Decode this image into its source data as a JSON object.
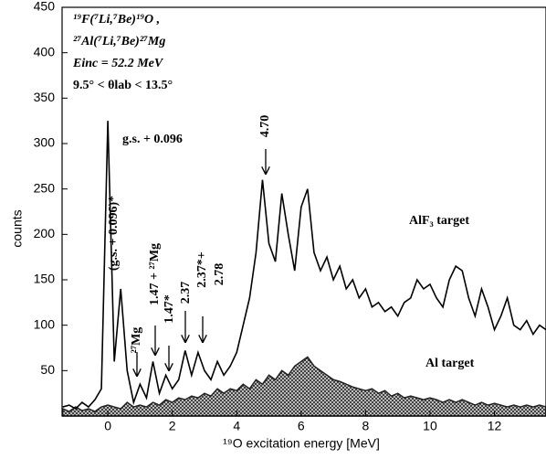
{
  "chart_data": {
    "type": "line",
    "xlabel": "¹⁹O excitation energy [MeV]",
    "ylabel": "counts",
    "inset_text": [
      "¹⁹F(⁷Li,⁷Be)¹⁹O ,",
      "²⁷Al(⁷Li,⁷Be)²⁷Mg",
      "Einc = 52.2 MeV",
      "9.5° < θlab < 13.5°"
    ],
    "annotations": [
      "g.s. + 0.096",
      "(g.s. + 0.096)*",
      "²⁷Mg",
      "1.47 + ²⁷Mg",
      "1.47*",
      "2.37",
      "2.37*+",
      "2.78",
      "4.70"
    ],
    "x": [
      -1.4,
      -1.2,
      -1.0,
      -0.8,
      -0.6,
      -0.4,
      -0.2,
      0,
      0.2,
      0.4,
      0.6,
      0.8,
      1.0,
      1.2,
      1.4,
      1.6,
      1.8,
      2.0,
      2.2,
      2.4,
      2.6,
      2.8,
      3.0,
      3.2,
      3.4,
      3.6,
      3.8,
      4.0,
      4.2,
      4.4,
      4.6,
      4.8,
      5.0,
      5.2,
      5.4,
      5.6,
      5.8,
      6.0,
      6.2,
      6.4,
      6.6,
      6.8,
      7.0,
      7.2,
      7.4,
      7.6,
      7.8,
      8.0,
      8.2,
      8.4,
      8.6,
      8.8,
      9.0,
      9.2,
      9.4,
      9.6,
      9.8,
      10.0,
      10.2,
      10.4,
      10.6,
      10.8,
      11.0,
      11.2,
      11.4,
      11.6,
      11.8,
      12.0,
      12.2,
      12.4,
      12.6,
      12.8,
      13.0,
      13.2,
      13.4,
      13.6
    ],
    "series": [
      {
        "name": "AlF₃ target",
        "color": "#000000",
        "fill": false,
        "values": [
          10,
          12,
          8,
          15,
          10,
          18,
          30,
          325,
          60,
          140,
          50,
          15,
          35,
          20,
          60,
          25,
          45,
          30,
          40,
          72,
          45,
          70,
          50,
          40,
          60,
          45,
          55,
          70,
          100,
          130,
          180,
          260,
          190,
          170,
          245,
          200,
          160,
          230,
          250,
          180,
          160,
          175,
          150,
          165,
          140,
          150,
          130,
          140,
          120,
          125,
          115,
          120,
          110,
          125,
          130,
          150,
          140,
          145,
          130,
          120,
          150,
          165,
          160,
          130,
          110,
          140,
          120,
          95,
          110,
          130,
          100,
          95,
          105,
          90,
          100,
          95
        ]
      },
      {
        "name": "Al target",
        "color": "#222222",
        "fill": true,
        "values": [
          8,
          5,
          10,
          6,
          8,
          5,
          10,
          12,
          10,
          8,
          15,
          10,
          12,
          10,
          15,
          12,
          18,
          15,
          20,
          18,
          22,
          20,
          25,
          22,
          30,
          25,
          30,
          28,
          35,
          30,
          40,
          35,
          45,
          40,
          50,
          45,
          55,
          60,
          65,
          55,
          50,
          45,
          40,
          38,
          35,
          32,
          30,
          28,
          30,
          25,
          28,
          22,
          25,
          20,
          22,
          20,
          18,
          20,
          18,
          15,
          18,
          15,
          18,
          15,
          12,
          15,
          12,
          14,
          12,
          10,
          12,
          10,
          12,
          10,
          12,
          10
        ]
      }
    ],
    "xlim": [
      -1.42,
      13.6
    ],
    "ylim": [
      0,
      450
    ],
    "xticks": [
      0,
      2,
      4,
      6,
      8,
      10,
      12
    ],
    "yticks": [
      50,
      100,
      150,
      200,
      250,
      300,
      350,
      400,
      450
    ]
  }
}
